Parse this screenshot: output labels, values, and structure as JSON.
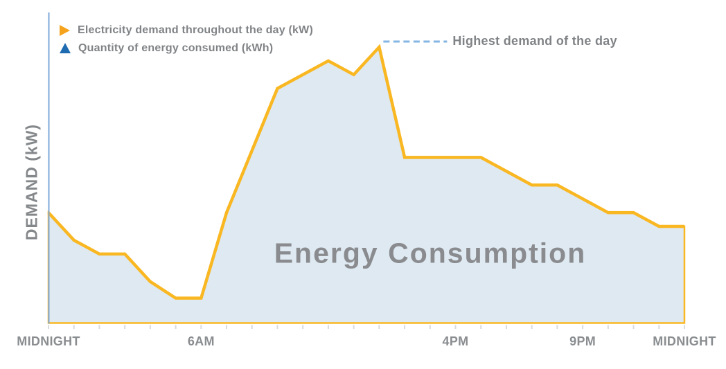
{
  "chart_data": {
    "type": "area",
    "title": "Energy Consumption",
    "ylabel": "DEMAND (kW)",
    "xlabel": "",
    "xlim": [
      0,
      25
    ],
    "ylim": [
      0,
      100
    ],
    "grid": false,
    "legend_position": "top-left",
    "legend": [
      {
        "label": "Electricity demand throughout the day (kW)",
        "icon": "play-triangle-icon",
        "color": "#F5A31C"
      },
      {
        "label": "Quantity of energy consumed (kWh)",
        "icon": "up-triangle-icon",
        "color": "#1E6BB2"
      }
    ],
    "x_tick_count": 26,
    "x_axis_labels": [
      {
        "text": "MIDNIGHT",
        "t": 0
      },
      {
        "text": "6AM",
        "t": 6
      },
      {
        "text": "4PM",
        "t": 16
      },
      {
        "text": "9PM",
        "t": 21
      },
      {
        "text": "MIDNIGHT",
        "t": 25
      }
    ],
    "series": [
      {
        "name": "Electricity demand throughout the day (kW)",
        "style": "area",
        "points": [
          [
            0,
            40
          ],
          [
            1,
            30
          ],
          [
            2,
            25
          ],
          [
            3,
            25
          ],
          [
            4,
            15
          ],
          [
            5,
            9
          ],
          [
            6,
            9
          ],
          [
            7,
            40
          ],
          [
            9,
            85
          ],
          [
            11,
            95
          ],
          [
            12,
            90
          ],
          [
            13,
            100
          ],
          [
            14,
            60
          ],
          [
            17,
            60
          ],
          [
            19,
            50
          ],
          [
            20,
            50
          ],
          [
            22,
            40
          ],
          [
            23,
            40
          ],
          [
            24,
            35
          ],
          [
            25,
            35
          ]
        ]
      }
    ],
    "annotation": {
      "text": "Highest demand of the day",
      "at_t": 13,
      "at_value": 100,
      "style": "dashed-leader"
    }
  },
  "colors": {
    "demand_line": "#F9B722",
    "area_fill": "#DEE9F2",
    "axis_line": "#7FA9DA",
    "dash_leader": "#85B5E3",
    "tick": "#D9DBDC",
    "text_gray": "#808386",
    "title_gray": "#8A8B8E"
  }
}
